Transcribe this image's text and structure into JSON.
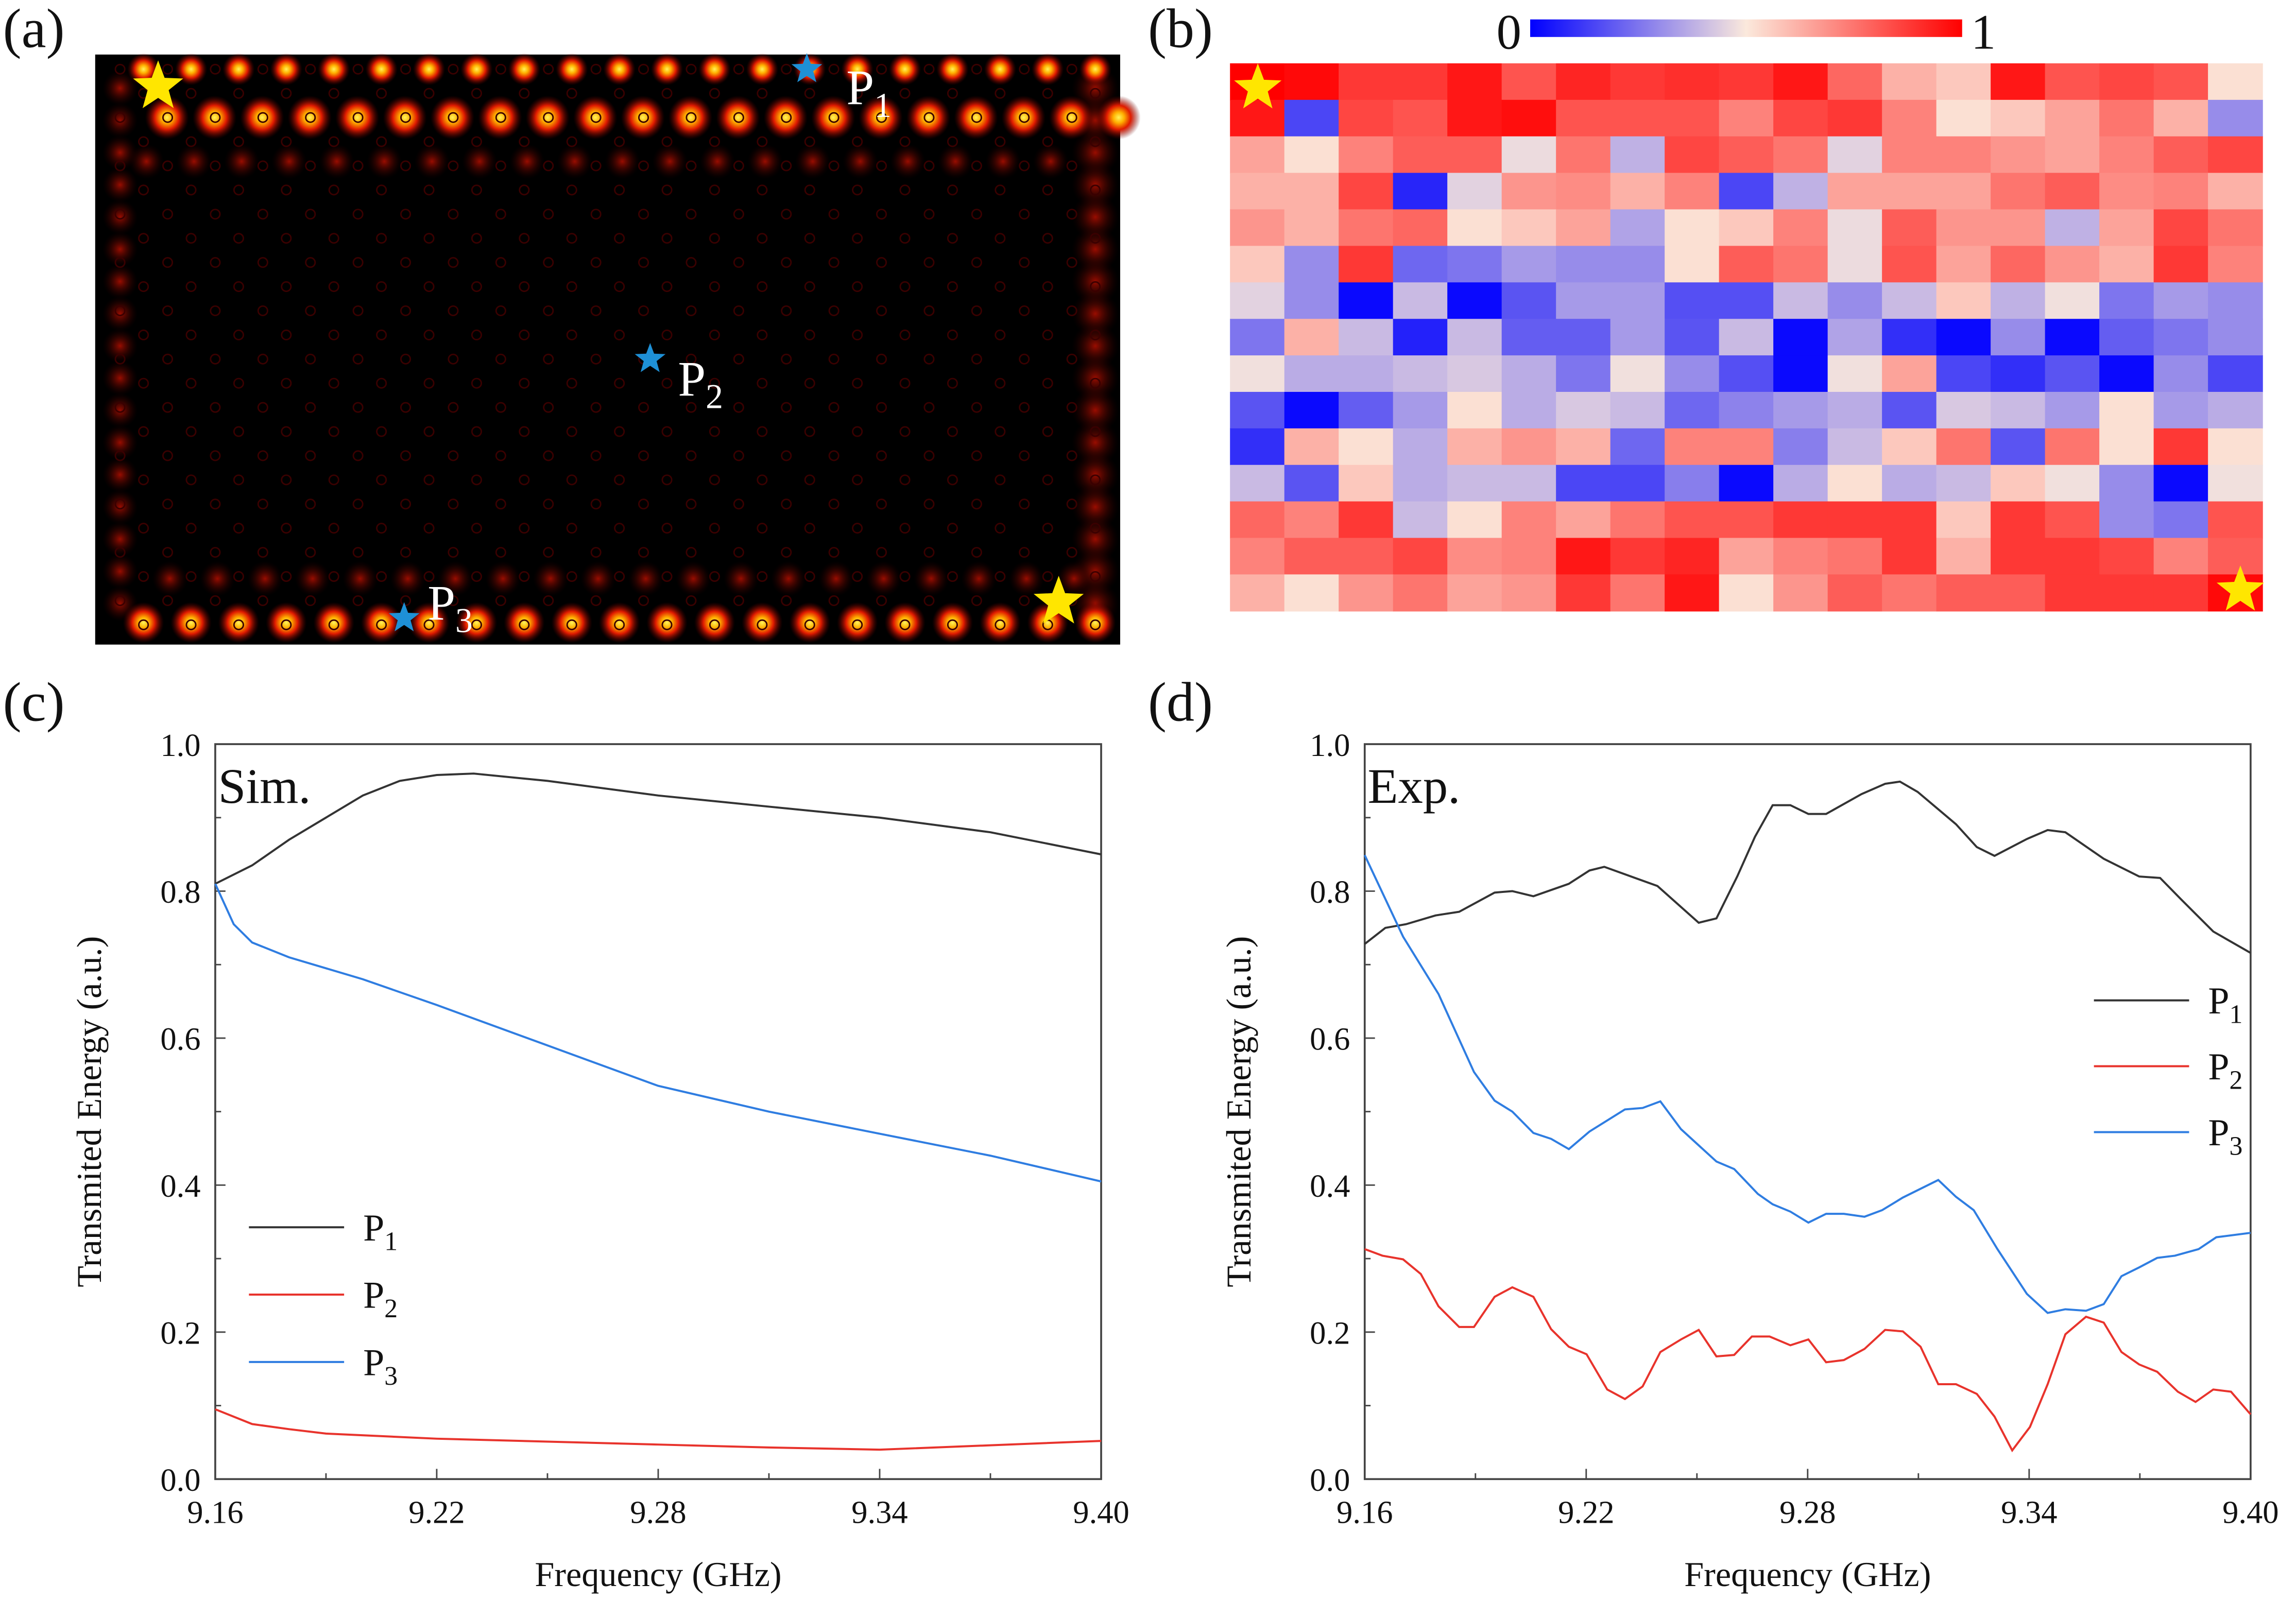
{
  "panels": {
    "a": {
      "label": "(a)",
      "probes": [
        {
          "name": "P1",
          "color": "#1e90d6"
        },
        {
          "name": "P2",
          "color": "#1e90d6"
        },
        {
          "name": "P3",
          "color": "#1e90d6"
        }
      ],
      "source_star_color": "#ffe600"
    },
    "b": {
      "label": "(b)",
      "colorbar_min": "0",
      "colorbar_max": "1"
    },
    "c": {
      "label": "(c)"
    },
    "d": {
      "label": "(d)"
    }
  },
  "chart_data": [
    {
      "type": "heatmap",
      "panel": "b",
      "colormap": [
        "#0000ff",
        "#fbe9dc",
        "#ff0000"
      ],
      "zlim": [
        0,
        1
      ],
      "rows": 15,
      "cols": 19,
      "values": [
        [
          1.0,
          0.98,
          0.88,
          0.88,
          0.95,
          0.82,
          0.92,
          0.88,
          0.9,
          0.88,
          0.95,
          0.78,
          0.62,
          0.57,
          0.95,
          0.82,
          0.85,
          0.82,
          0.52
        ],
        [
          0.95,
          0.15,
          0.85,
          0.82,
          0.95,
          0.97,
          0.82,
          0.82,
          0.82,
          0.72,
          0.85,
          0.88,
          0.72,
          0.52,
          0.57,
          0.65,
          0.75,
          0.62,
          0.3
        ],
        [
          0.65,
          0.52,
          0.72,
          0.8,
          0.8,
          0.47,
          0.75,
          0.38,
          0.85,
          0.8,
          0.75,
          0.45,
          0.72,
          0.72,
          0.68,
          0.65,
          0.72,
          0.8,
          0.85
        ],
        [
          0.62,
          0.62,
          0.85,
          0.08,
          0.45,
          0.68,
          0.7,
          0.62,
          0.72,
          0.15,
          0.38,
          0.65,
          0.65,
          0.65,
          0.75,
          0.8,
          0.7,
          0.72,
          0.62
        ],
        [
          0.68,
          0.62,
          0.75,
          0.78,
          0.52,
          0.57,
          0.65,
          0.35,
          0.52,
          0.57,
          0.72,
          0.47,
          0.8,
          0.68,
          0.68,
          0.38,
          0.65,
          0.85,
          0.75
        ],
        [
          0.57,
          0.3,
          0.88,
          0.22,
          0.25,
          0.33,
          0.3,
          0.3,
          0.52,
          0.8,
          0.75,
          0.47,
          0.82,
          0.65,
          0.78,
          0.68,
          0.62,
          0.88,
          0.72
        ],
        [
          0.45,
          0.3,
          0.02,
          0.4,
          0.02,
          0.18,
          0.33,
          0.33,
          0.17,
          0.17,
          0.4,
          0.3,
          0.4,
          0.57,
          0.38,
          0.48,
          0.25,
          0.33,
          0.3
        ],
        [
          0.25,
          0.62,
          0.4,
          0.07,
          0.4,
          0.2,
          0.2,
          0.33,
          0.18,
          0.4,
          0.02,
          0.35,
          0.1,
          0.02,
          0.3,
          0.02,
          0.2,
          0.25,
          0.3
        ],
        [
          0.48,
          0.37,
          0.37,
          0.4,
          0.43,
          0.37,
          0.25,
          0.48,
          0.3,
          0.17,
          0.02,
          0.48,
          0.65,
          0.15,
          0.1,
          0.18,
          0.02,
          0.3,
          0.15
        ],
        [
          0.18,
          0.02,
          0.2,
          0.33,
          0.52,
          0.37,
          0.43,
          0.4,
          0.22,
          0.28,
          0.33,
          0.37,
          0.18,
          0.43,
          0.4,
          0.33,
          0.52,
          0.33,
          0.37
        ],
        [
          0.1,
          0.62,
          0.52,
          0.37,
          0.62,
          0.68,
          0.62,
          0.22,
          0.72,
          0.72,
          0.27,
          0.4,
          0.57,
          0.75,
          0.18,
          0.75,
          0.52,
          0.88,
          0.52
        ],
        [
          0.4,
          0.18,
          0.57,
          0.37,
          0.4,
          0.4,
          0.15,
          0.15,
          0.27,
          0.02,
          0.37,
          0.52,
          0.37,
          0.4,
          0.57,
          0.48,
          0.3,
          0.02,
          0.48
        ],
        [
          0.78,
          0.72,
          0.88,
          0.4,
          0.52,
          0.72,
          0.65,
          0.75,
          0.82,
          0.82,
          0.88,
          0.88,
          0.88,
          0.57,
          0.88,
          0.82,
          0.3,
          0.25,
          0.82
        ],
        [
          0.72,
          0.8,
          0.8,
          0.85,
          0.7,
          0.72,
          0.95,
          0.88,
          0.92,
          0.65,
          0.72,
          0.75,
          0.88,
          0.62,
          0.88,
          0.88,
          0.85,
          0.72,
          0.8
        ],
        [
          0.62,
          0.52,
          0.68,
          0.75,
          0.65,
          0.68,
          0.88,
          0.75,
          0.95,
          0.52,
          0.68,
          0.8,
          0.75,
          0.8,
          0.8,
          0.88,
          0.88,
          0.88,
          0.98
        ]
      ]
    },
    {
      "type": "line",
      "panel": "c",
      "annotation": "Sim.",
      "xlabel": "Frequency (GHz)",
      "ylabel": "Transmited Energy (a.u.)",
      "xlim": [
        9.16,
        9.4
      ],
      "ylim": [
        0.0,
        1.0
      ],
      "xticks": [
        "9.16",
        "9.22",
        "9.28",
        "9.34",
        "9.40"
      ],
      "yticks": [
        "0.0",
        "0.2",
        "0.4",
        "0.6",
        "0.8",
        "1.0"
      ],
      "legend": "lower-left",
      "series": [
        {
          "name": "P1",
          "color": "#333333",
          "x": [
            9.16,
            9.17,
            9.18,
            9.19,
            9.2,
            9.21,
            9.22,
            9.23,
            9.25,
            9.28,
            9.31,
            9.34,
            9.37,
            9.4
          ],
          "y": [
            0.81,
            0.835,
            0.87,
            0.9,
            0.93,
            0.95,
            0.958,
            0.96,
            0.95,
            0.93,
            0.915,
            0.9,
            0.88,
            0.85
          ]
        },
        {
          "name": "P2",
          "color": "#e8332c",
          "x": [
            9.16,
            9.17,
            9.18,
            9.19,
            9.22,
            9.25,
            9.28,
            9.31,
            9.34,
            9.37,
            9.4
          ],
          "y": [
            0.095,
            0.075,
            0.068,
            0.062,
            0.055,
            0.051,
            0.047,
            0.043,
            0.04,
            0.046,
            0.052
          ]
        },
        {
          "name": "P3",
          "color": "#2f7de1",
          "x": [
            9.16,
            9.165,
            9.17,
            9.18,
            9.19,
            9.2,
            9.22,
            9.25,
            9.28,
            9.31,
            9.34,
            9.37,
            9.4
          ],
          "y": [
            0.81,
            0.755,
            0.73,
            0.71,
            0.695,
            0.68,
            0.645,
            0.59,
            0.535,
            0.5,
            0.47,
            0.44,
            0.405
          ]
        }
      ]
    },
    {
      "type": "line",
      "panel": "d",
      "annotation": "Exp.",
      "xlabel": "Frequency (GHz)",
      "ylabel": "Transmited Energy (a.u.)",
      "xlim": [
        9.16,
        9.4
      ],
      "ylim": [
        0.0,
        1.0
      ],
      "xticks": [
        "9.16",
        "9.22",
        "9.28",
        "9.34",
        "9.40"
      ],
      "yticks": [
        "0.0",
        "0.2",
        "0.4",
        "0.6",
        "0.8",
        "1.0"
      ],
      "legend": "right",
      "series": [
        {
          "name": "P1",
          "color": "#333333",
          "x": [
            9.16,
            9.1656,
            9.1712,
            9.1792,
            9.1856,
            9.1952,
            9.2,
            9.2057,
            9.2153,
            9.2209,
            9.2249,
            9.2305,
            9.2393,
            9.2505,
            9.2553,
            9.2609,
            9.2657,
            9.2705,
            9.2753,
            9.2802,
            9.285,
            9.2946,
            9.301,
            9.305,
            9.3098,
            9.3202,
            9.3258,
            9.3306,
            9.3394,
            9.345,
            9.3498,
            9.3602,
            9.3698,
            9.3755,
            9.3811,
            9.3899,
            9.4
          ],
          "y": [
            0.728,
            0.75,
            0.755,
            0.767,
            0.772,
            0.798,
            0.8,
            0.793,
            0.81,
            0.828,
            0.833,
            0.823,
            0.807,
            0.757,
            0.763,
            0.82,
            0.874,
            0.917,
            0.917,
            0.905,
            0.905,
            0.932,
            0.946,
            0.949,
            0.935,
            0.891,
            0.86,
            0.848,
            0.871,
            0.883,
            0.88,
            0.844,
            0.82,
            0.818,
            0.789,
            0.745,
            0.716
          ]
        },
        {
          "name": "P2",
          "color": "#e8332c",
          "x": [
            9.16,
            9.1648,
            9.1704,
            9.1752,
            9.18,
            9.1856,
            9.1896,
            9.1952,
            9.2,
            9.2057,
            9.2105,
            9.2153,
            9.2201,
            9.2257,
            9.2305,
            9.2353,
            9.2401,
            9.2457,
            9.2505,
            9.2553,
            9.2601,
            9.2649,
            9.2697,
            9.2753,
            9.2802,
            9.285,
            9.2898,
            9.2954,
            9.301,
            9.3058,
            9.3106,
            9.3154,
            9.3202,
            9.3258,
            9.3306,
            9.3354,
            9.3402,
            9.345,
            9.3498,
            9.3554,
            9.3602,
            9.365,
            9.3698,
            9.3747,
            9.3803,
            9.3851,
            9.3899,
            9.3947,
            9.4
          ],
          "y": [
            0.313,
            0.304,
            0.299,
            0.279,
            0.235,
            0.207,
            0.207,
            0.248,
            0.261,
            0.248,
            0.204,
            0.18,
            0.17,
            0.122,
            0.109,
            0.126,
            0.173,
            0.19,
            0.203,
            0.167,
            0.169,
            0.194,
            0.194,
            0.182,
            0.19,
            0.159,
            0.162,
            0.177,
            0.203,
            0.201,
            0.18,
            0.129,
            0.129,
            0.116,
            0.085,
            0.039,
            0.071,
            0.129,
            0.197,
            0.221,
            0.213,
            0.173,
            0.156,
            0.146,
            0.119,
            0.105,
            0.122,
            0.119,
            0.088
          ]
        },
        {
          "name": "P3",
          "color": "#2f7de1",
          "x": [
            9.16,
            9.1704,
            9.18,
            9.1896,
            9.1952,
            9.2,
            9.2057,
            9.2105,
            9.2153,
            9.2209,
            9.2305,
            9.2353,
            9.2401,
            9.2457,
            9.2553,
            9.2601,
            9.2665,
            9.2705,
            9.2753,
            9.2802,
            9.285,
            9.2898,
            9.2954,
            9.3002,
            9.3058,
            9.3154,
            9.3202,
            9.325,
            9.3314,
            9.3394,
            9.345,
            9.3498,
            9.3554,
            9.3602,
            9.365,
            9.3698,
            9.3747,
            9.3795,
            9.3859,
            9.3907,
            9.4
          ],
          "y": [
            0.849,
            0.738,
            0.66,
            0.554,
            0.515,
            0.5,
            0.471,
            0.463,
            0.449,
            0.473,
            0.503,
            0.505,
            0.514,
            0.476,
            0.432,
            0.422,
            0.388,
            0.374,
            0.364,
            0.349,
            0.361,
            0.361,
            0.357,
            0.366,
            0.383,
            0.407,
            0.384,
            0.366,
            0.313,
            0.252,
            0.226,
            0.231,
            0.229,
            0.238,
            0.276,
            0.288,
            0.301,
            0.304,
            0.313,
            0.329,
            0.335
          ]
        }
      ]
    }
  ]
}
